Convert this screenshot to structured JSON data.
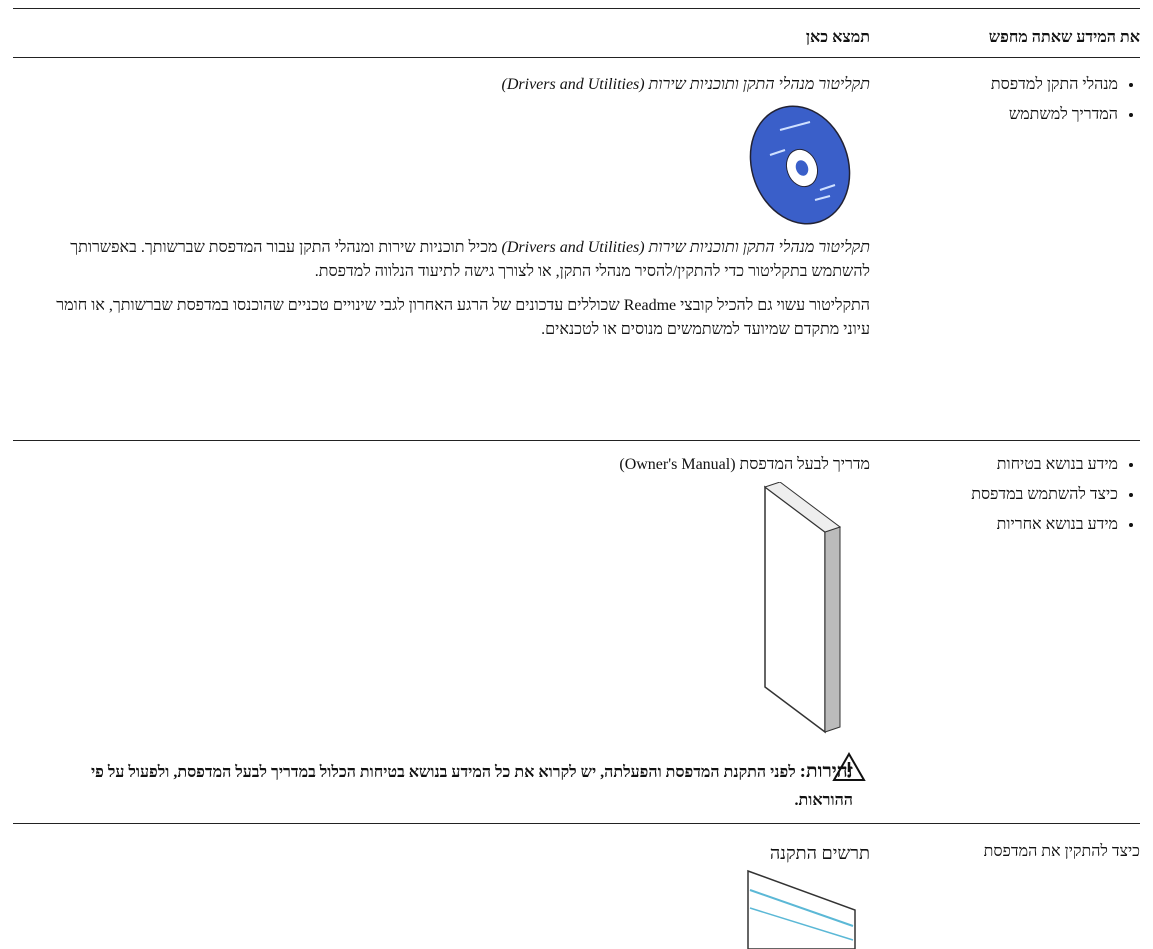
{
  "header": {
    "find_col": "את המידע שאתה מחפש",
    "here_col": "תמצא כאן"
  },
  "rows": [
    {
      "items": [
        "מנהלי התקן למדפסת",
        "המדריך למשתמש"
      ],
      "source_title": "תקליטור מנהלי התקן ותוכניות שירות (Drivers and Utilities)",
      "paragraphs": [
        {
          "lead": "תקליטור מנהלי התקן ותוכניות שירות (Drivers and Utilities)",
          "text": " מכיל תוכניות שירות ומנהלי התקן עבור המדפסת שברשותך. באפשרותך להשתמש בתקליטור כדי להתקין/להסיר מנהלי התקן, או לצורך גישה לתיעוד הנלווה למדפסת."
        },
        {
          "text": "התקליטור עשוי גם להכיל קובצי Readme שכוללים עדכונים של הרגע האחרון לגבי שינויים טכניים שהוכנסו במדפסת שברשותך, או חומר עיוני מתקדם שמיועד למשתמשים מנוסים או לטכנאים."
        }
      ]
    },
    {
      "items": [
        "מידע בנושא בטיחות",
        "כיצד להשתמש במדפסת",
        "מידע בנושא אחריות"
      ],
      "source_title": "מדריך לבעל המדפסת (Owner's Manual)",
      "warning": {
        "label": "זהירות:",
        "text": " לפני התקנת המדפסת והפעלתה, יש לקרוא את כל המידע בנושא בטיחות הכלול במדריך לבעל המדפסת, ולפעול על פי ההוראות."
      }
    },
    {
      "topic": "כיצד להתקין את המדפסת",
      "source_title": "תרשים התקנה"
    }
  ]
}
